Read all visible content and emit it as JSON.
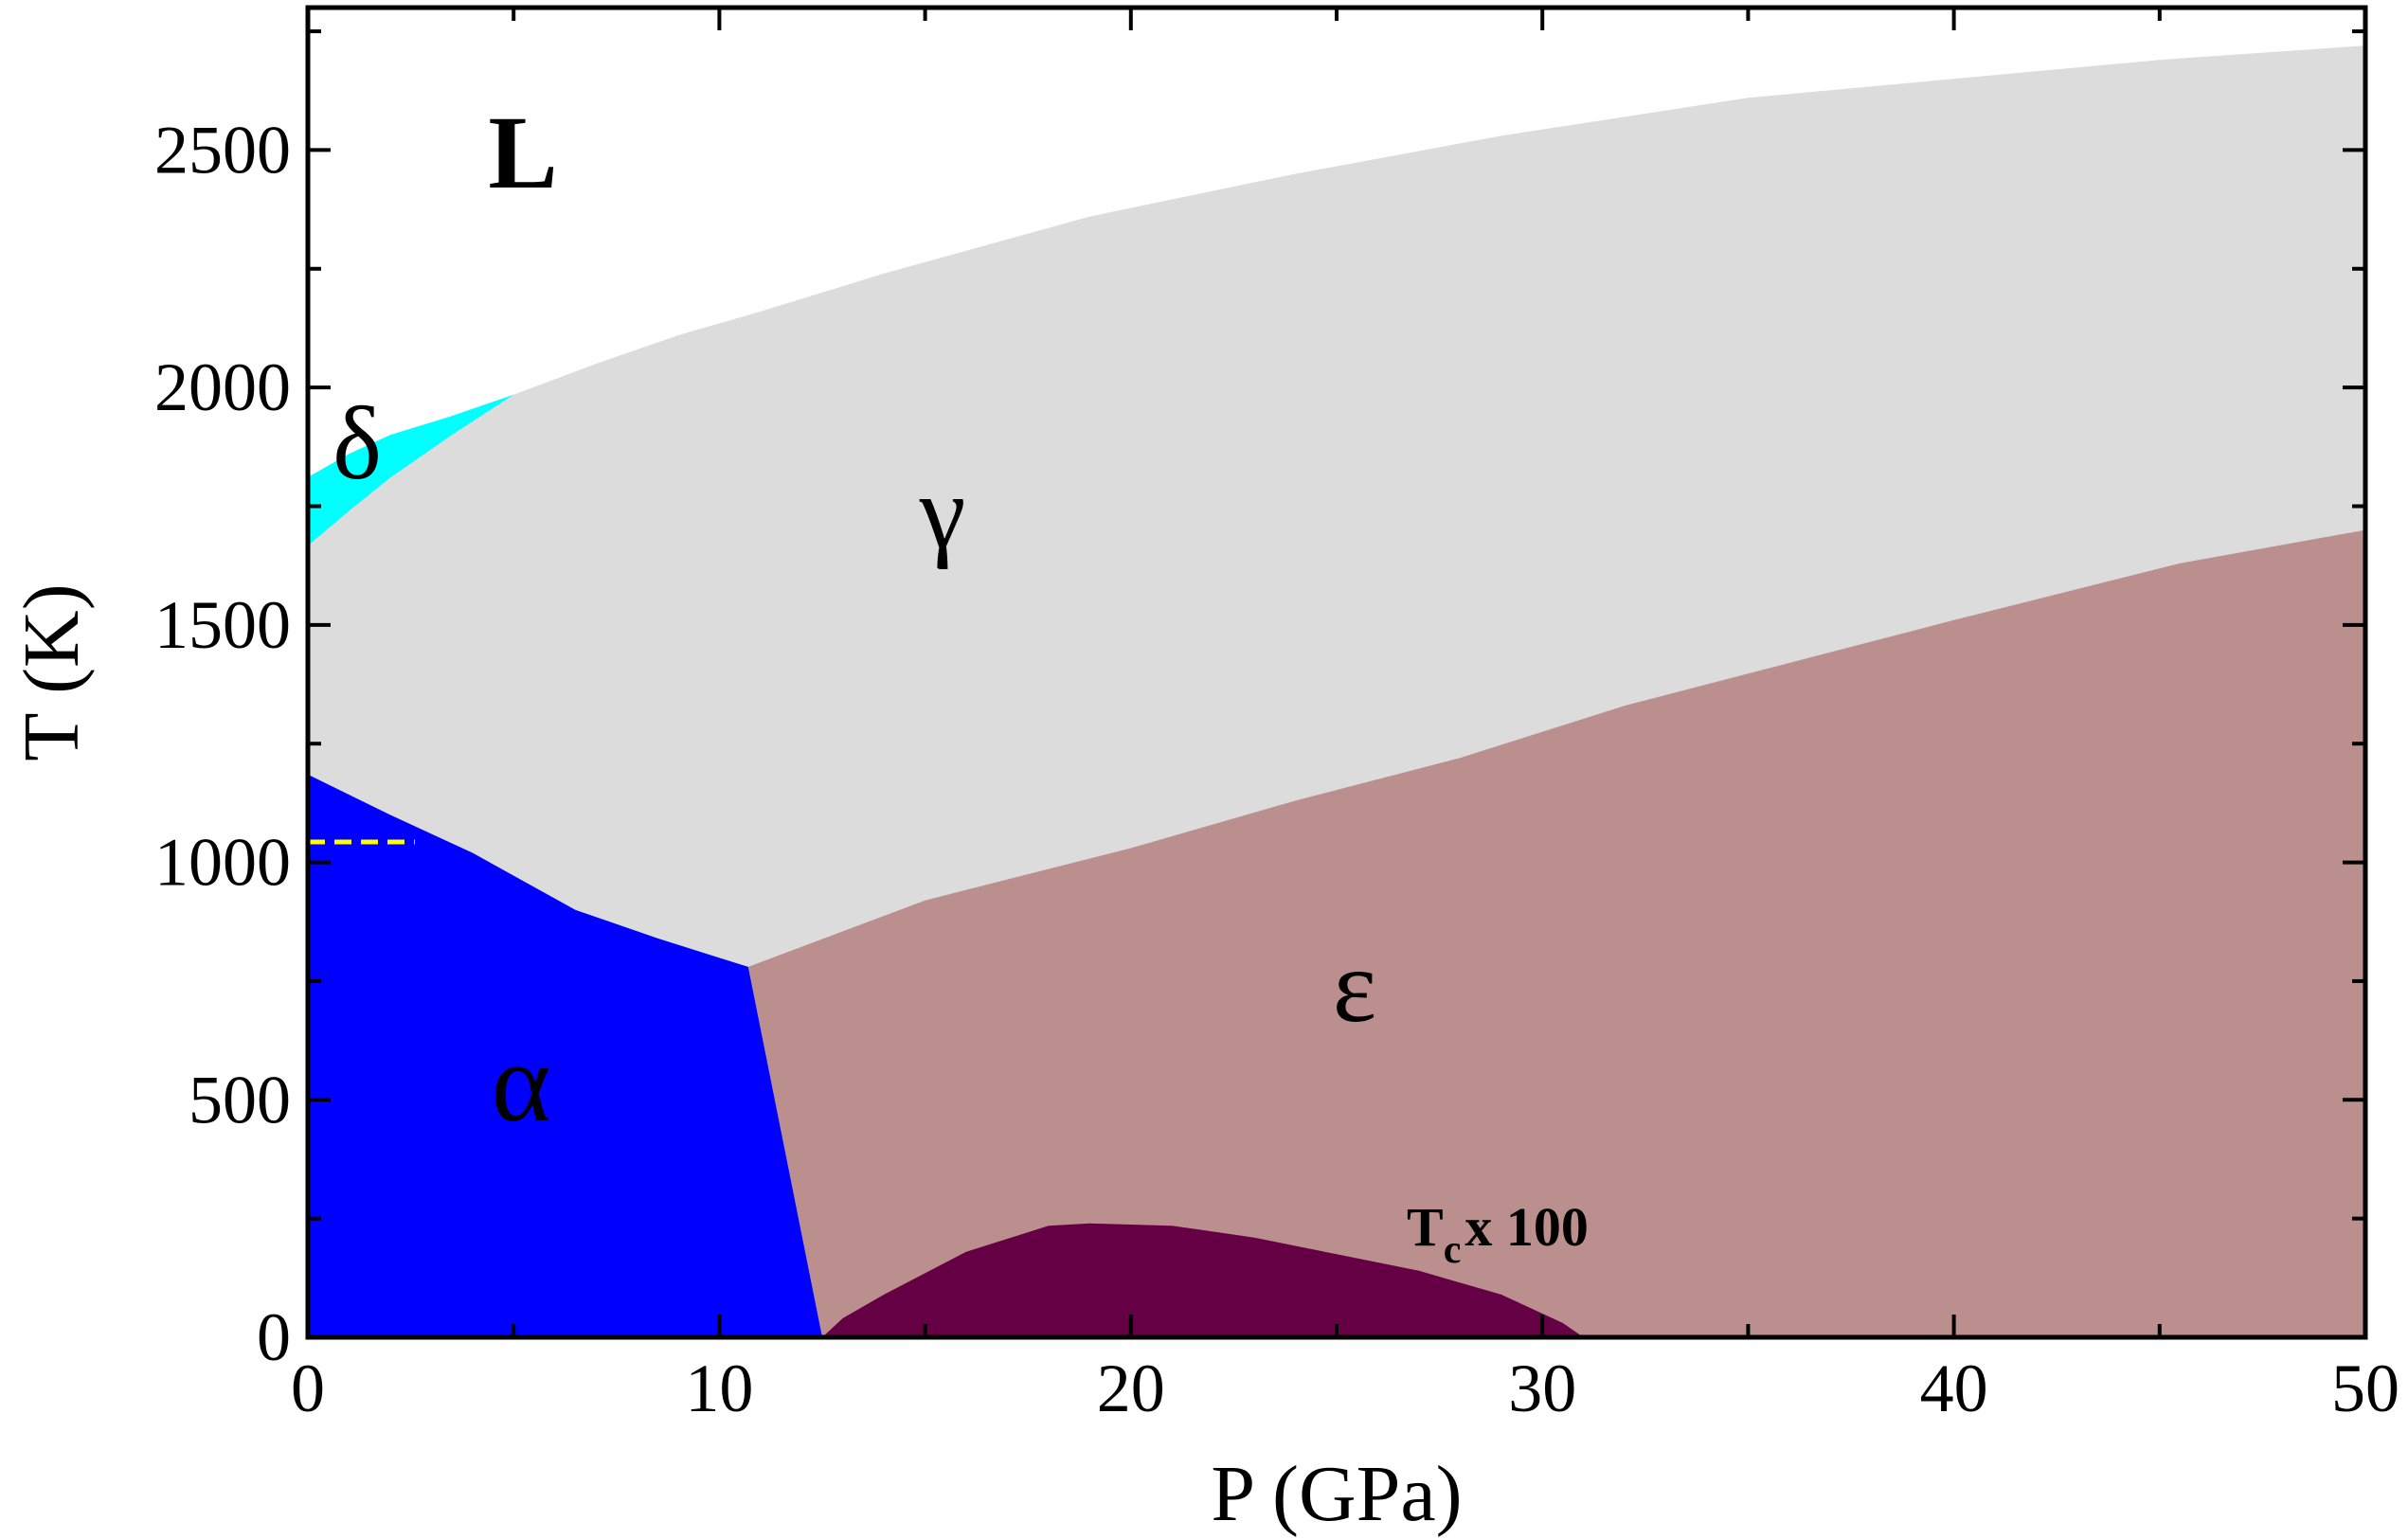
{
  "chart_data": {
    "type": "area",
    "xlabel": "P (GPa)",
    "ylabel": "T (K)",
    "xlim": [
      0,
      50
    ],
    "ylim": [
      0,
      2800
    ],
    "xticks": [
      0,
      10,
      20,
      30,
      40,
      50
    ],
    "yticks": [
      0,
      500,
      1000,
      1500,
      2000,
      2500
    ],
    "grid": false,
    "colors": {
      "liquid": "#ffffff",
      "delta": "#00ffff",
      "gamma": "#dcdcdc",
      "alpha": "#0000ff",
      "epsilon": "#bc8f8f",
      "tc": "#660044",
      "dashed": "#ffff00"
    },
    "boundaries": {
      "melting": [
        [
          0,
          1811
        ],
        [
          1,
          1860
        ],
        [
          2,
          1900
        ],
        [
          3.5,
          1940
        ],
        [
          5,
          1985
        ],
        [
          7,
          2050
        ],
        [
          9,
          2110
        ],
        [
          11,
          2160
        ],
        [
          14,
          2240
        ],
        [
          19,
          2360
        ],
        [
          24,
          2450
        ],
        [
          29,
          2530
        ],
        [
          35,
          2610
        ],
        [
          40,
          2650
        ],
        [
          45,
          2690
        ],
        [
          50,
          2720
        ]
      ],
      "delta_gamma": [
        [
          0,
          1667
        ],
        [
          1,
          1740
        ],
        [
          2,
          1810
        ],
        [
          3.5,
          1900
        ],
        [
          5,
          1985
        ]
      ],
      "alpha_gamma": [
        [
          0,
          1185
        ],
        [
          2,
          1100
        ],
        [
          4,
          1020
        ],
        [
          6.5,
          900
        ],
        [
          8.5,
          840
        ],
        [
          10.7,
          780
        ]
      ],
      "alpha_epsilon": [
        [
          10.7,
          780
        ],
        [
          12.5,
          0
        ]
      ],
      "gamma_epsilon": [
        [
          10.7,
          780
        ],
        [
          15,
          920
        ],
        [
          20,
          1030
        ],
        [
          24,
          1130
        ],
        [
          28,
          1220
        ],
        [
          32,
          1330
        ],
        [
          36,
          1420
        ],
        [
          40,
          1510
        ],
        [
          45.5,
          1630
        ],
        [
          50,
          1700
        ]
      ],
      "tc_curve": [
        [
          12.5,
          0
        ],
        [
          13,
          40
        ],
        [
          14,
          90
        ],
        [
          16,
          180
        ],
        [
          18,
          235
        ],
        [
          19,
          240
        ],
        [
          21,
          235
        ],
        [
          23,
          210
        ],
        [
          25,
          175
        ],
        [
          27,
          140
        ],
        [
          29,
          90
        ],
        [
          30.5,
          30
        ],
        [
          31,
          0
        ]
      ],
      "curie_dashed": [
        [
          0,
          1043
        ],
        [
          2.6,
          1043
        ]
      ]
    },
    "annotations": {
      "L": "L",
      "delta": "δ",
      "gamma": "γ",
      "alpha": "α",
      "epsilon": "ε",
      "tc": {
        "main": "T",
        "sub": "c",
        "suffix": "x 100"
      }
    }
  }
}
